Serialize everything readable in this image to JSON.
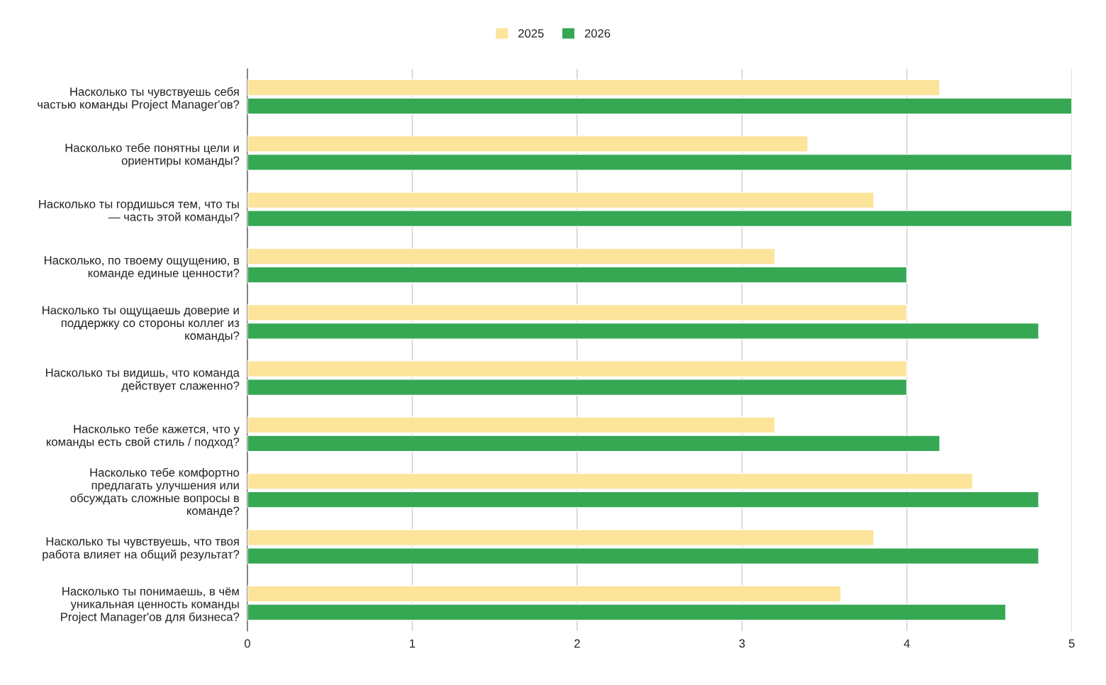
{
  "chart_data": {
    "type": "bar",
    "orientation": "horizontal",
    "categories": [
      "Насколько ты чувствуешь себя\nчастью команды Project Manager'ов?",
      "Насколько тебе понятны цели и\nориентиры команды?",
      "Насколько ты гордишься тем, что ты\n— часть этой команды?",
      "Насколько, по твоему ощущению, в\nкоманде единые ценности?",
      "Насколько ты ощущаешь доверие и\nподдержку со стороны коллег из\nкоманды?",
      "Насколько ты видишь, что команда\nдействует слаженно?",
      "Насколько тебе кажется, что у\nкоманды есть свой стиль / подход?",
      "Насколько тебе комфортно\nпредлагать улучшения или\nобсуждать сложные вопросы в\nкоманде?",
      "Насколько ты чувствуешь, что твоя\nработа влияет на общий результат?",
      "Насколько ты понимаешь, в чём\nуникальная ценность команды\nProject Manager'ов для бизнеса?"
    ],
    "series": [
      {
        "name": "2025",
        "color": "#fde49b",
        "values": [
          4.2,
          3.4,
          3.8,
          3.2,
          4.0,
          4.0,
          3.2,
          4.4,
          3.8,
          3.6
        ]
      },
      {
        "name": "2026",
        "color": "#36a853",
        "values": [
          5.0,
          5.0,
          5.0,
          4.0,
          4.8,
          4.0,
          4.2,
          4.8,
          4.8,
          4.6
        ]
      }
    ],
    "xlim": [
      0,
      5
    ],
    "xticks": [
      0,
      1,
      2,
      3,
      4,
      5
    ],
    "grid": "x",
    "legend": "top"
  }
}
